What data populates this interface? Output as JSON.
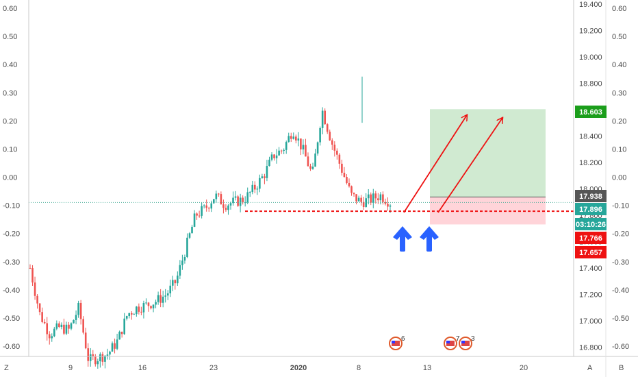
{
  "corner_labels": {
    "bottom_left": "Z",
    "bottom_right_a": "A",
    "bottom_right_b": "B"
  },
  "colors": {
    "up": "#26a69a",
    "down": "#ef5350",
    "profit_zone": "#c8e6c9",
    "loss_zone": "#ffcdd2",
    "arrow_red": "#ee1111",
    "arrow_blue": "#2962ff",
    "dotted": "#4caf9a"
  },
  "chart_data": {
    "type": "candlestick",
    "title": "",
    "y_left": {
      "ticks": [
        "0.60",
        "0.50",
        "0.40",
        "0.30",
        "0.20",
        "0.10",
        "0.00",
        "-0.10",
        "-0.20",
        "-0.30",
        "-0.40",
        "-0.50",
        "-0.60"
      ],
      "range": [
        -0.6,
        0.6
      ]
    },
    "y_right_price": {
      "ticks": [
        "19.400",
        "19.200",
        "19.000",
        "18.800",
        "18.600",
        "18.400",
        "18.200",
        "18.000",
        "17.800",
        "17.600",
        "17.400",
        "17.200",
        "17.000",
        "16.800"
      ],
      "range": [
        16.73,
        19.43
      ]
    },
    "y_right_pct": {
      "ticks": [
        "0.60",
        "0.50",
        "0.40",
        "0.30",
        "0.20",
        "0.10",
        "0.00",
        "-0.10",
        "-0.20",
        "-0.30",
        "-0.40",
        "-0.50",
        "-0.60"
      ]
    },
    "x_ticks": [
      "9",
      "16",
      "23",
      "2020",
      "8",
      "13",
      "20"
    ],
    "price_labels": [
      {
        "value": "18.603",
        "type": "target"
      },
      {
        "value": "17.938",
        "type": "entry"
      },
      {
        "value": "17.896",
        "type": "current"
      },
      {
        "value": "03:10:26",
        "type": "countdown"
      },
      {
        "value": "17.766",
        "type": "stop"
      },
      {
        "value": "17.657",
        "type": "stop2"
      }
    ],
    "levels": {
      "target": 18.603,
      "entry": 17.938,
      "current": 17.896,
      "stop": 17.766,
      "support": 17.83
    },
    "events": [
      {
        "label": "6"
      },
      {
        "label": "7"
      },
      {
        "label": "3"
      }
    ],
    "candles_anchor_closes": [
      17.4,
      17.05,
      16.9,
      16.95,
      16.93,
      17.1,
      16.7,
      16.72,
      16.75,
      16.85,
      17.05,
      17.1,
      17.12,
      17.15,
      17.2,
      17.3,
      17.55,
      17.8,
      17.85,
      17.95,
      17.88,
      17.9,
      17.92,
      18.0,
      18.1,
      18.25,
      18.3,
      18.45,
      18.3,
      18.1,
      18.6,
      18.35,
      18.15,
      17.95,
      17.9,
      17.92,
      17.95,
      17.896
    ]
  }
}
